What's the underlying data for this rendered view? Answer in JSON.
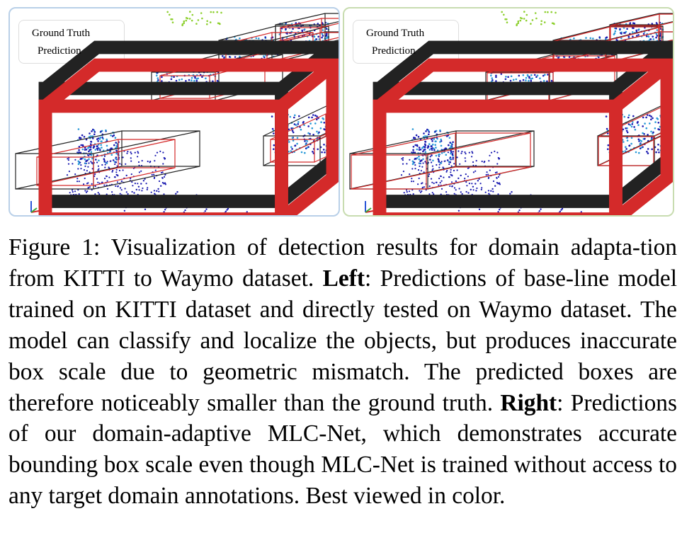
{
  "figure": {
    "legend": {
      "ground_truth_label": "Ground Truth",
      "prediction_label": "Prediction",
      "ground_truth_color": "#222222",
      "prediction_color": "#d42a2a"
    },
    "panels": [
      {
        "id": "left",
        "border_color": "#b9d0e8"
      },
      {
        "id": "right",
        "border_color": "#c8dcb0"
      }
    ],
    "colors": {
      "far_points": "#1a1ab0",
      "object_points": "#2a9ad8",
      "highlight_points": "#8ed030"
    }
  },
  "caption": {
    "label": "Figure 1:",
    "intro": "Visualization of detection results for domain adapta-tion from KITTI to Waymo dataset.",
    "left_label": "Left",
    "left_text": ": Predictions of base-line model trained on KITTI dataset and directly tested on Waymo dataset. The model can classify and localize the objects, but produces inaccurate box scale due to geometric mismatch. The predicted boxes are therefore noticeably smaller than the ground truth.",
    "right_label": "Right",
    "right_text": ": Predictions of our domain-adaptive MLC-Net, which demonstrates accurate bounding box scale even though MLC-Net is trained without access to any target domain annotations. Best viewed in color."
  }
}
